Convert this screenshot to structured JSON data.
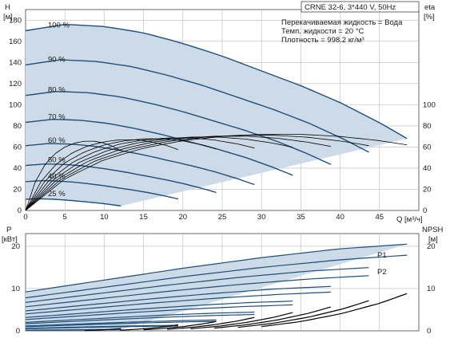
{
  "chart_data": [
    {
      "type": "line",
      "title": "CRNE 32-6, 3*440 V, 50Hz",
      "y_label": "H",
      "y_unit": "[м]",
      "y2_label": "eta",
      "y2_unit": "[%]",
      "x_label": "Q [м³/ч]",
      "xlim": [
        0,
        50
      ],
      "ylim": [
        0,
        190
      ],
      "y2lim": [
        0,
        190
      ],
      "x_ticks": [
        "0",
        "5",
        "10",
        "15",
        "20",
        "25",
        "30",
        "35",
        "40",
        "45"
      ],
      "y_ticks": [
        "0",
        "20",
        "40",
        "60",
        "80",
        "100",
        "120",
        "140",
        "160",
        "180"
      ],
      "y2_ticks": [
        "0",
        "20",
        "40",
        "60",
        "80",
        "100"
      ],
      "info": [
        "Перекачиваемая жидкость = Вода",
        "Темп. жидкости = 20 °C",
        "Плотность = 998.2 кг/м³"
      ],
      "speed_labels": [
        "100 %",
        "90 %",
        "80 %",
        "70 %",
        "60 %",
        "50 %",
        "40 %",
        "25 %"
      ],
      "speed_fractions": [
        1.0,
        0.9,
        0.8,
        0.7,
        0.6,
        0.5,
        0.4,
        0.25
      ],
      "head_curve_100": {
        "q": [
          0,
          5,
          10,
          15,
          20,
          25,
          30,
          35,
          40,
          45,
          48.5
        ],
        "h": [
          170,
          176,
          174,
          168,
          158,
          146,
          132,
          118,
          102,
          83,
          68
        ]
      },
      "efficiency_curve_100": {
        "q": [
          0,
          5,
          10,
          15,
          20,
          25,
          30,
          35,
          40,
          45,
          48.5
        ],
        "eta": [
          0,
          30,
          48,
          59,
          66,
          70,
          72,
          72,
          70,
          66,
          62
        ]
      },
      "shaded_area_color": "#cddbe8",
      "curve_color": "#1f4e79",
      "efficiency_color": "#000000"
    },
    {
      "type": "line",
      "y_label": "P",
      "y_unit": "[кВт]",
      "y2_label": "NPSH",
      "y2_unit": "[м]",
      "xlim": [
        0,
        50
      ],
      "ylim": [
        0,
        23
      ],
      "y_ticks": [
        "0",
        "10",
        "20"
      ],
      "y2_ticks": [
        "0",
        "10",
        "20"
      ],
      "series_labels": [
        "P1",
        "P2"
      ],
      "power_p1_100": {
        "q": [
          0,
          10,
          20,
          30,
          40,
          48.5
        ],
        "p": [
          9.2,
          12.0,
          14.8,
          17.3,
          19.4,
          20.5
        ]
      },
      "power_p2_100": {
        "q": [
          0,
          10,
          20,
          30,
          40,
          48.5
        ],
        "p": [
          7.8,
          10.3,
          12.8,
          15.0,
          16.8,
          17.9
        ]
      },
      "npsh_100": {
        "q": [
          30,
          35,
          40,
          45,
          48.5
        ],
        "npsh": [
          1.0,
          2.2,
          4.0,
          6.5,
          8.8
        ]
      }
    }
  ]
}
